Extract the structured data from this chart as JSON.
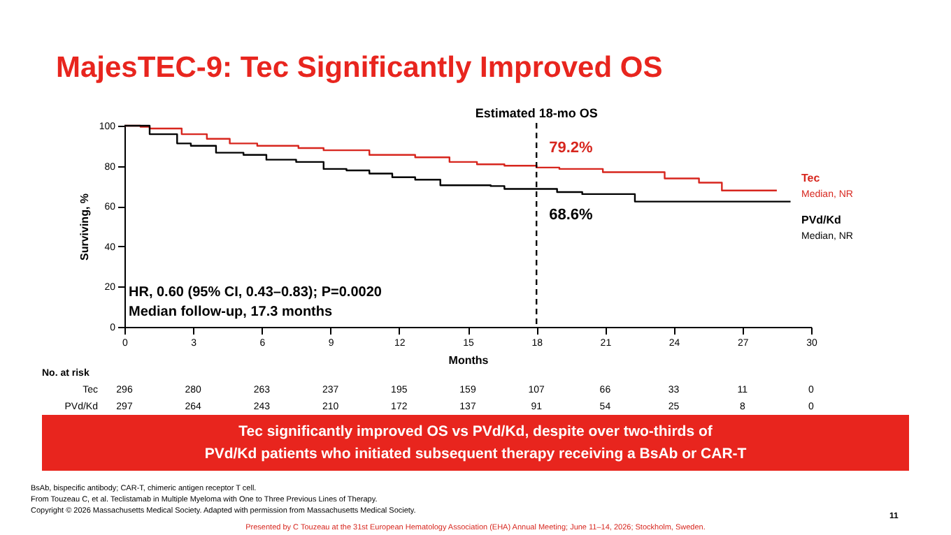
{
  "chart_data": {
    "type": "step",
    "title": "MajesTEC-9: Tec Significantly Improved OS",
    "xlabel": "Months",
    "ylabel": "Surviving, %",
    "xlim": [
      0,
      30
    ],
    "ylim": [
      0,
      100
    ],
    "xticks": [
      0,
      3,
      6,
      9,
      12,
      15,
      18,
      21,
      24,
      27,
      30
    ],
    "yticks": [
      0,
      20,
      40,
      60,
      80,
      100
    ],
    "line_style": "solid",
    "series": [
      {
        "name": "Tec",
        "color": "#d7261e",
        "x": [
          0,
          0.7,
          1.1,
          2.5,
          3.6,
          4.6,
          5.8,
          7.6,
          8.7,
          10.7,
          12.7,
          14.2,
          15.4,
          16.6,
          18,
          19,
          20.9,
          23.6,
          25.1,
          26.1,
          28.5
        ],
        "values": [
          100,
          99.5,
          98.6,
          95.8,
          93.5,
          91.2,
          90,
          88.9,
          87.8,
          85.5,
          84.3,
          82,
          80.8,
          80.1,
          79.2,
          78.5,
          76.9,
          73.8,
          71.7,
          67.8,
          67.8
        ]
      },
      {
        "name": "PVd/Kd",
        "color": "#000000",
        "x": [
          0,
          1.1,
          2.3,
          2.9,
          4.0,
          5.2,
          6.2,
          7.5,
          8.7,
          9.7,
          10.7,
          11.7,
          12.7,
          13.8,
          16.0,
          16.6,
          18.9,
          20.0,
          22.3,
          29.1
        ],
        "values": [
          100,
          95.8,
          91.2,
          90,
          86.6,
          85.5,
          83.1,
          82,
          78.5,
          77.8,
          76.2,
          74.4,
          73.2,
          70.4,
          70,
          68.6,
          67,
          66,
          62.3,
          62.3
        ]
      }
    ],
    "ref_lines": [
      {
        "axis": "x",
        "value": 18,
        "label": "Estimated 18-mo OS",
        "line_style": "dashed",
        "color": "#000000"
      }
    ],
    "annotations": [
      {
        "text": "79.2%",
        "x": 18,
        "y": 79.2
      },
      {
        "text": "68.6%",
        "x": 18,
        "y": 68.6
      },
      "Median, NR",
      "Median, NR",
      "HR, 0.60 (95% CI, 0.43–0.83); P=0.0020",
      "Median follow-up, 17.3 months",
      "Tec significantly improved OS vs PVd/Kd, despite over two-thirds of",
      "PVd/Kd patients who initiated subsequent therapy receiving a BsAb or CAR-T",
      "BsAb, bispecific antibody; CAR-T, chimeric antigen receptor T cell.",
      "From Touzeau C, et al. Teclistamab in Multiple Myeloma with One to Three Previous Lines of Therapy.",
      "Copyright © 2026 Massachusetts Medical Society. Adapted with permission from Massachusetts Medical Society.",
      "Presented by C Touzeau at the 31st European Hematology Association (EHA) Annual Meeting; June 11–14, 2026; Stockholm, Sweden.",
      "11",
      "No. at risk",
      "Tec",
      "PVd/Kd",
      "296",
      "280",
      "263",
      "237",
      "195",
      "159",
      "107",
      "66",
      "33",
      "11",
      "0",
      "297",
      "264",
      "243",
      "210",
      "172",
      "137",
      "91",
      "54",
      "25",
      "8",
      "0"
    ]
  }
}
